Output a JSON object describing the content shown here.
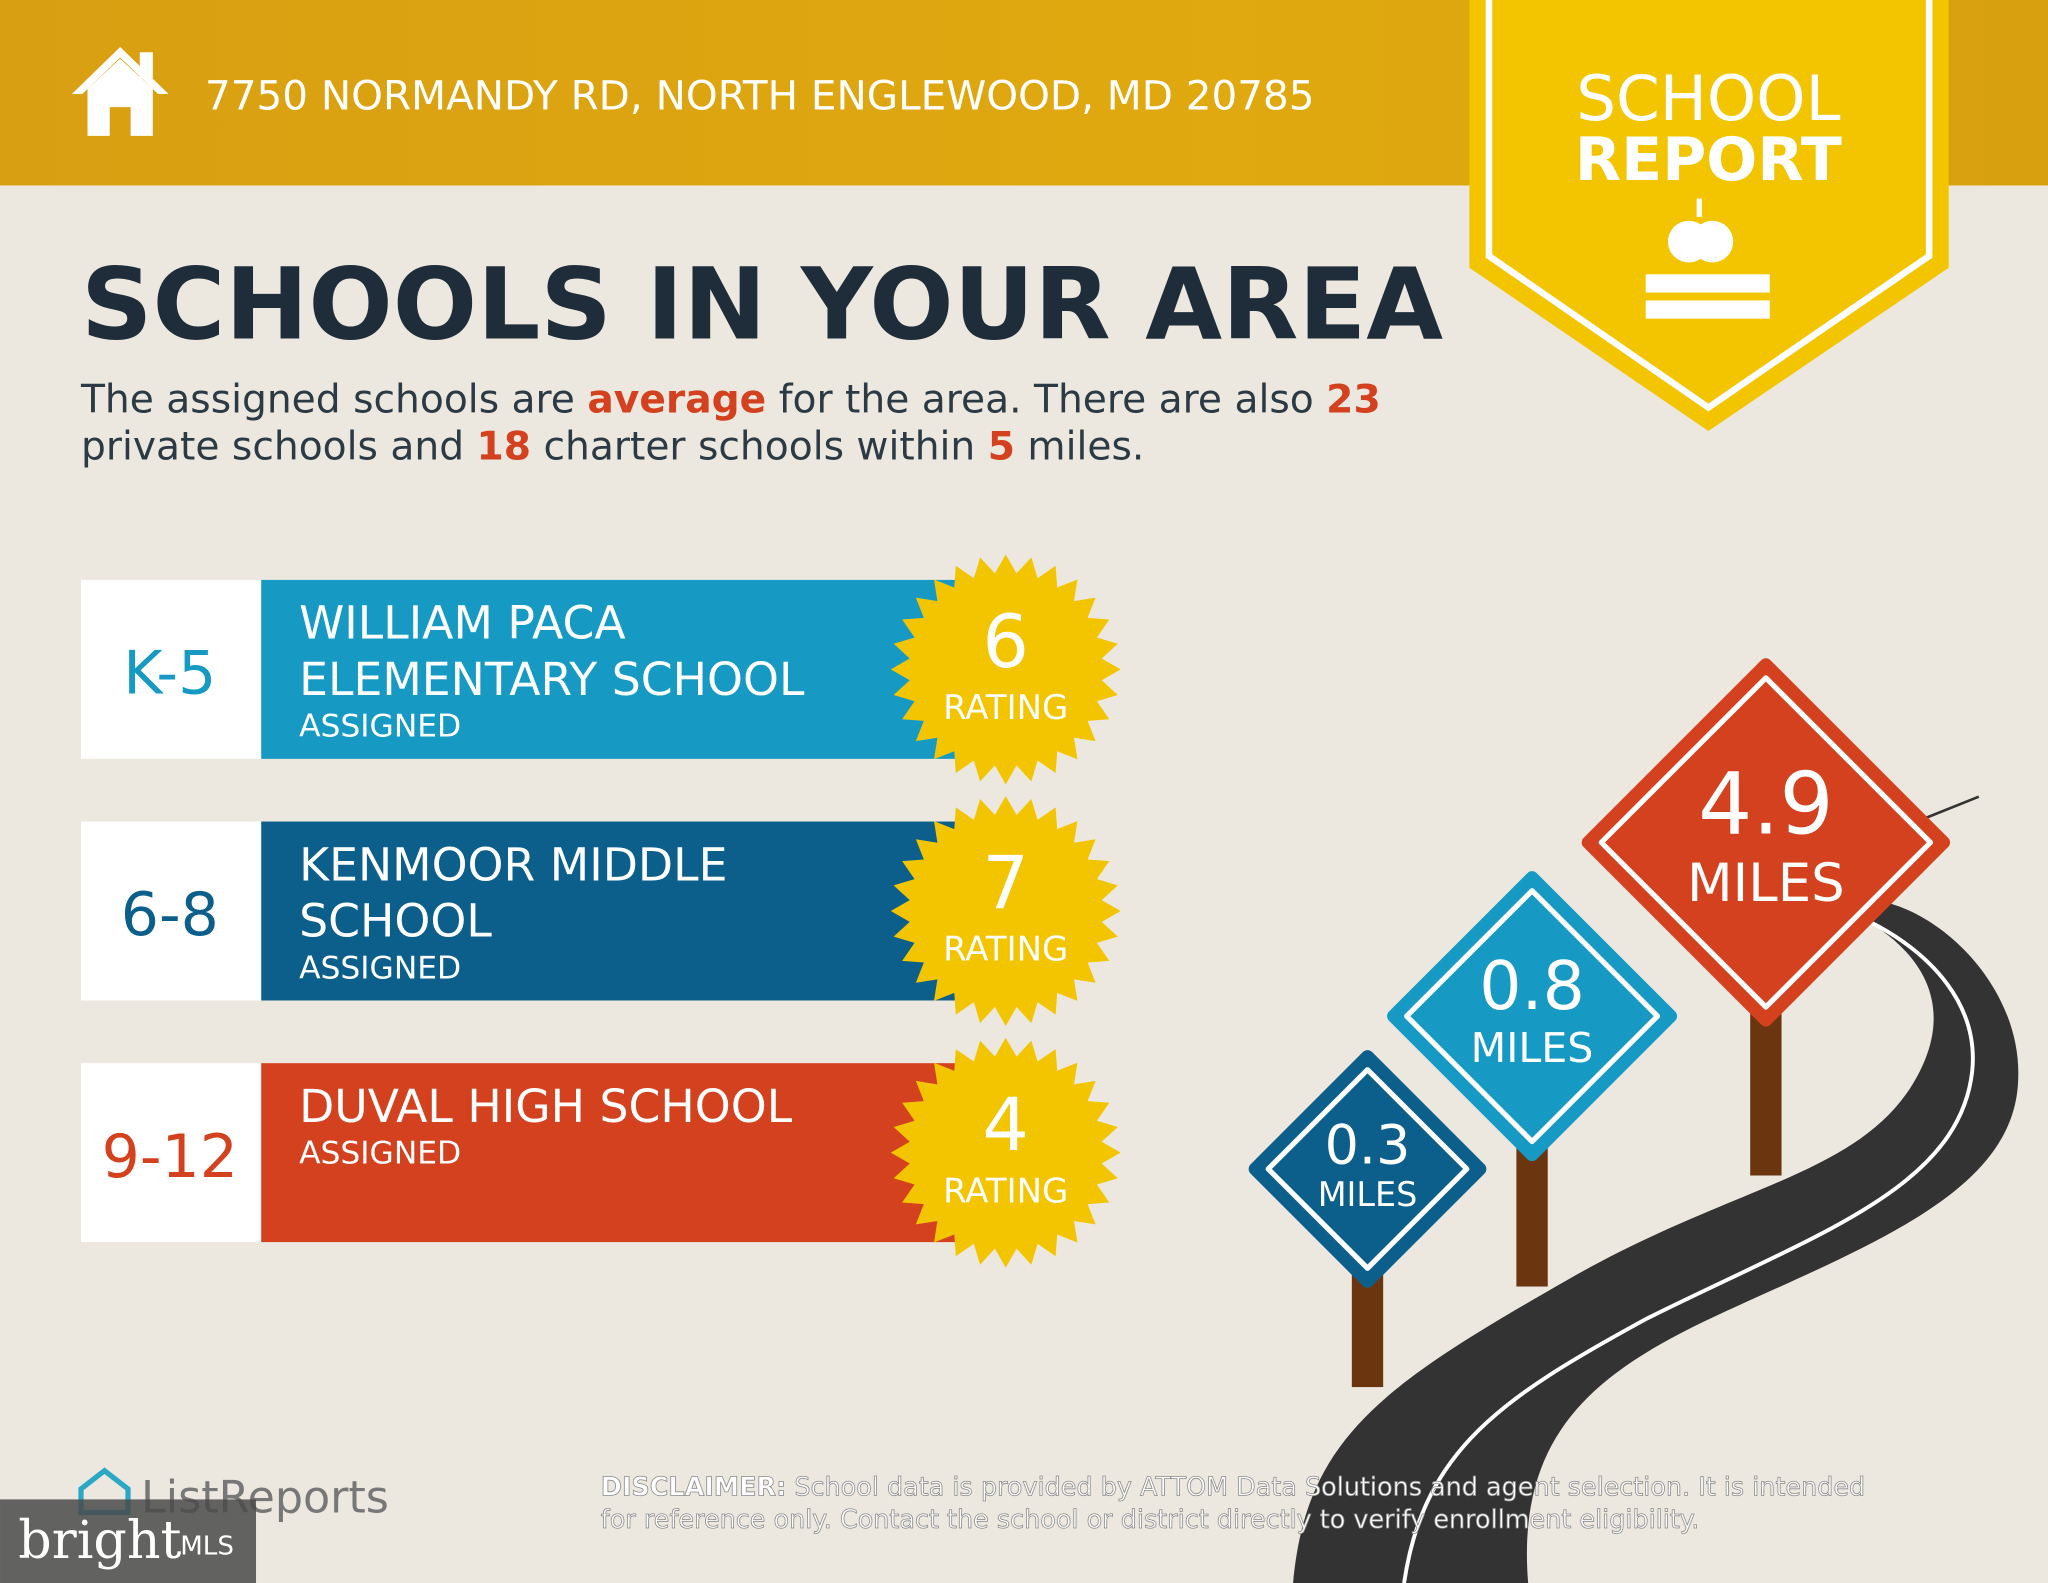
{
  "header": {
    "address": "7750 NORMANDY RD, NORTH ENGLEWOOD, MD 20785"
  },
  "badge": {
    "line1": "SCHOOL",
    "line2": "REPORT"
  },
  "title": "SCHOOLS IN YOUR AREA",
  "summary": {
    "lines": [
      [
        {
          "text": "The assigned schools are ",
          "highlight": false
        },
        {
          "text": "average",
          "highlight": true
        },
        {
          "text": " for the area. There are also ",
          "highlight": false
        },
        {
          "text": "23",
          "highlight": true
        }
      ],
      [
        {
          "text": "private schools and ",
          "highlight": false
        },
        {
          "text": "18",
          "highlight": true
        },
        {
          "text": " charter schools within ",
          "highlight": false
        },
        {
          "text": "5",
          "highlight": true
        },
        {
          "text": " miles.",
          "highlight": false
        }
      ]
    ]
  },
  "schools": [
    {
      "grade": "K-5",
      "name": [
        "WILLIAM PACA",
        "ELEMENTARY SCHOOL"
      ],
      "status": "ASSIGNED",
      "rating": "6",
      "rating_label": "RATING",
      "color": "#169ac4"
    },
    {
      "grade": "6-8",
      "name": [
        "KENMOOR MIDDLE",
        "SCHOOL"
      ],
      "status": "ASSIGNED",
      "rating": "7",
      "rating_label": "RATING",
      "color": "#0b5f8a"
    },
    {
      "grade": "9-12",
      "name": [
        "DUVAL HIGH SCHOOL"
      ],
      "status": "ASSIGNED",
      "rating": "4",
      "rating_label": "RATING",
      "color": "#d4411f"
    }
  ],
  "distances": [
    {
      "value": "0.3",
      "unit": "MILES",
      "color": "#0b5f8a"
    },
    {
      "value": "0.8",
      "unit": "MILES",
      "color": "#169ac4"
    },
    {
      "value": "4.9",
      "unit": "MILES",
      "color": "#d4411f"
    }
  ],
  "footer": {
    "logo": "ListReports",
    "disclaimer_label": "DISCLAIMER:",
    "disclaimer_lines": [
      " School data is provided by ATTOM Data Solutions and agent selection. It is intended",
      "for reference only. Contact the school or district directly to verify enrollment eligibility."
    ],
    "watermark": "bright",
    "watermark_suffix": "MLS"
  }
}
